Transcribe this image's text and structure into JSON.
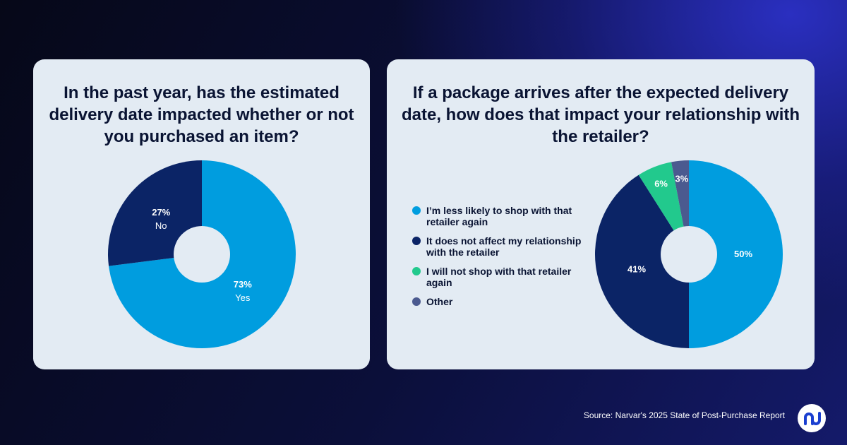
{
  "source_note": "Source: Narvar's 2025 State of Post-Purchase Report",
  "logo": {
    "icon": "narvar-logo-icon",
    "color": "#1a3fd0"
  },
  "chart_data": [
    {
      "type": "pie",
      "title": "In the past year, has the estimated delivery date impacted whether or not you purchased an item?",
      "slices": [
        {
          "label": "Yes",
          "value": 73,
          "display": "73%",
          "color": "#009ddf"
        },
        {
          "label": "No",
          "value": 27,
          "display": "27%",
          "color": "#0b2466"
        }
      ],
      "donut": true,
      "legend": "none"
    },
    {
      "type": "pie",
      "title": "If a package arrives after the expected delivery date, how does that impact your relationship with the retailer?",
      "slices": [
        {
          "label": "I’m less likely to shop with that retailer again",
          "value": 50,
          "display": "50%",
          "color": "#009ddf"
        },
        {
          "label": "It does not affect my relationship with the retailer",
          "value": 41,
          "display": "41%",
          "color": "#0b2466"
        },
        {
          "label": "I will not shop with that retailer again",
          "value": 6,
          "display": "6%",
          "color": "#22c98d"
        },
        {
          "label": "Other",
          "value": 3,
          "display": "3%",
          "color": "#4b5a8f"
        }
      ],
      "donut": true,
      "legend": "left"
    }
  ]
}
